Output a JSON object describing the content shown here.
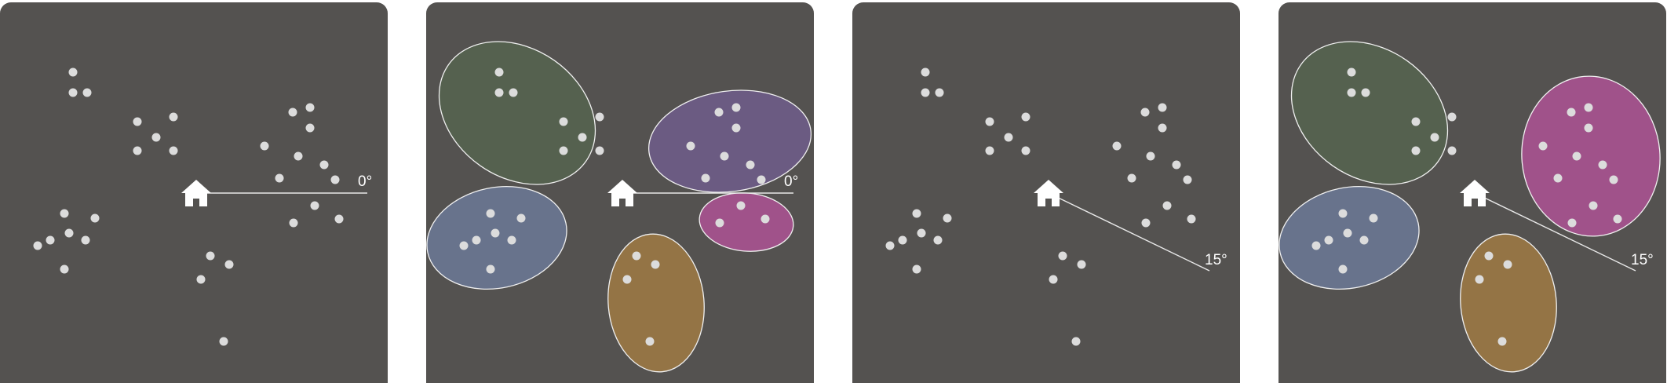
{
  "colors": {
    "panel_bg": "#545250",
    "point": "#dcdcdc",
    "home": "#ffffff",
    "ray": "#e8e8e8",
    "cluster_outline": "#f0f0f0",
    "cluster_green": "#55614f",
    "cluster_purple": "#6b5b82",
    "cluster_blue": "#68738c",
    "cluster_magenta": "#a0528a",
    "cluster_orange": "#947445"
  },
  "panels": [
    {
      "id": "p1",
      "ray_angle_label": "0°",
      "ray_angle_deg": 0,
      "clusters": "none"
    },
    {
      "id": "p2",
      "ray_angle_label": "0°",
      "ray_angle_deg": 0,
      "clusters": "five"
    },
    {
      "id": "p3",
      "ray_angle_label": "15°",
      "ray_angle_deg": 15,
      "clusters": "none"
    },
    {
      "id": "p4",
      "ray_angle_label": "15°",
      "ray_angle_deg": 15,
      "clusters": "four"
    }
  ]
}
